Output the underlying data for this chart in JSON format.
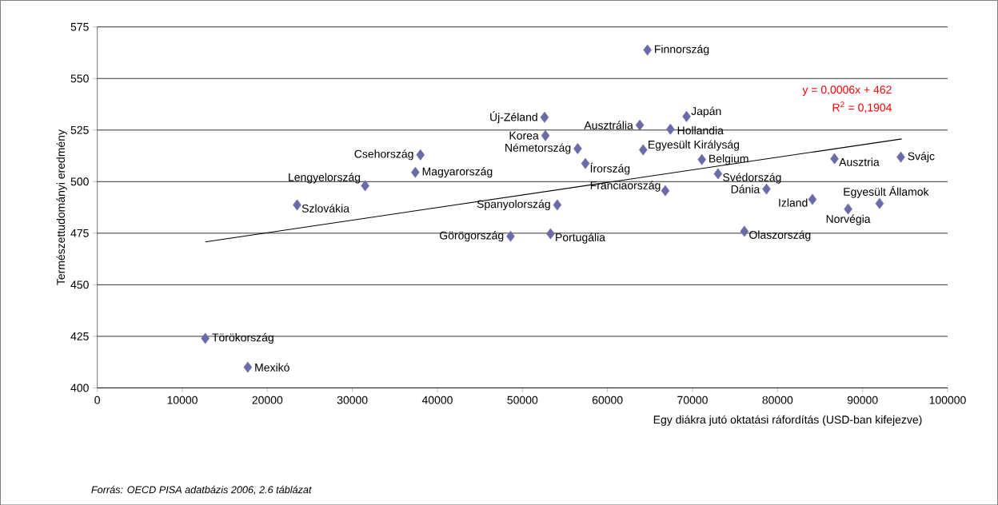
{
  "chart_data": {
    "type": "scatter",
    "xlabel": "Egy diákra jutó oktatási ráfordítás (USD-ban kifejezve)",
    "ylabel": "Természettudományi eredmény",
    "xlim": [
      0,
      100000
    ],
    "ylim": [
      400,
      575
    ],
    "xticks": [
      0,
      10000,
      20000,
      30000,
      40000,
      50000,
      60000,
      70000,
      80000,
      90000,
      100000
    ],
    "yticks": [
      400,
      425,
      450,
      475,
      500,
      525,
      550,
      575
    ],
    "grid": "y",
    "marker": "diamond",
    "series": [
      {
        "color": "#6b6ba8",
        "x": [
          12700,
          17700,
          23500,
          31500,
          38000,
          37400,
          48600,
          53300,
          54100,
          52600,
          52700,
          56500,
          57400,
          63800,
          64700,
          64200,
          69300,
          67400,
          66800,
          71100,
          73000,
          78700,
          76100,
          84100,
          86700,
          88300,
          92000,
          94500
        ],
        "values": [
          424,
          410,
          488.7,
          498,
          513,
          504.5,
          473.5,
          474.7,
          488.7,
          531.2,
          522.3,
          516,
          508.8,
          527.4,
          563.8,
          515.4,
          531.6,
          525.4,
          495.6,
          510.7,
          503.8,
          496.4,
          475.9,
          491.4,
          511.1,
          486.7,
          489.4,
          511.9
        ]
      },
      {
        "type": "line",
        "marker": "none",
        "color": "#000000",
        "x": [
          12700,
          94600
        ],
        "values": [
          470.8,
          520.7
        ]
      }
    ],
    "annotations": [
      {
        "text": "Törökország",
        "x": 12700,
        "y": 424
      },
      {
        "text": "Mexikó",
        "x": 17700,
        "y": 410
      },
      {
        "text": "Szlovákia",
        "x": 23500,
        "y": 488.7
      },
      {
        "text": "Lengyelország",
        "x": 31500,
        "y": 498
      },
      {
        "text": "Csehország",
        "x": 38000,
        "y": 513
      },
      {
        "text": "Magyarország",
        "x": 37400,
        "y": 504.5
      },
      {
        "text": "Görögország",
        "x": 48600,
        "y": 473.5
      },
      {
        "text": "Portugália",
        "x": 53300,
        "y": 474.7
      },
      {
        "text": "Spanyolország",
        "x": 54100,
        "y": 488.7
      },
      {
        "text": "Új-Zéland",
        "x": 52600,
        "y": 531.2
      },
      {
        "text": "Korea",
        "x": 52700,
        "y": 522.3
      },
      {
        "text": "Németország",
        "x": 56500,
        "y": 516
      },
      {
        "text": "Írország",
        "x": 57400,
        "y": 508.8
      },
      {
        "text": "Ausztrália",
        "x": 63800,
        "y": 527.4
      },
      {
        "text": "Finnország",
        "x": 64700,
        "y": 563.8
      },
      {
        "text": "Egyesült Királyság",
        "x": 64200,
        "y": 515.4
      },
      {
        "text": "Japán",
        "x": 69300,
        "y": 531.6
      },
      {
        "text": "Hollandia",
        "x": 67400,
        "y": 525.4
      },
      {
        "text": "Franciaország",
        "x": 66800,
        "y": 495.6
      },
      {
        "text": "Belgium",
        "x": 71100,
        "y": 510.7
      },
      {
        "text": "Svédország",
        "x": 73000,
        "y": 503.8
      },
      {
        "text": "Dánia",
        "x": 78700,
        "y": 496.4
      },
      {
        "text": "Olaszország",
        "x": 76100,
        "y": 475.9
      },
      {
        "text": "Izland",
        "x": 84100,
        "y": 491.4
      },
      {
        "text": "Ausztria",
        "x": 86700,
        "y": 511.1
      },
      {
        "text": "Norvégia",
        "x": 88300,
        "y": 486.7
      },
      {
        "text": "Egyesült Államok",
        "x": 92000,
        "y": 489.4
      },
      {
        "text": "Svájc",
        "x": 94500,
        "y": 511.9
      },
      "y = 0,0006x + 462",
      "R$^{2}$ = 0,1904",
      "Forrás: OECD PISA adatbázis 2006, 2.6 táblázat"
    ]
  }
}
